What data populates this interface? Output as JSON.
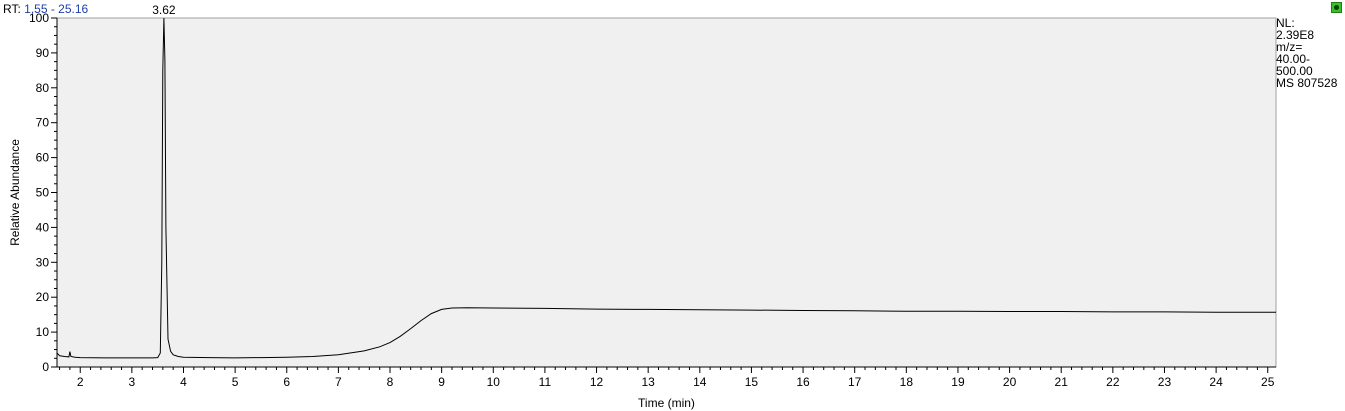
{
  "header": {
    "label": "RT:",
    "range": "1.55 - 25.16"
  },
  "info": [
    "NL:",
    "2.39E8",
    "m/z=",
    "40.00-",
    "500.00",
    "MS 807528"
  ],
  "icons": {
    "corner": "status-icon"
  },
  "colors": {
    "plot_background": "#f0f0f0",
    "trace": "#000000",
    "range_text": "#1f3fa8",
    "status_icon": "#3cbf2a"
  },
  "chart_data": {
    "type": "line",
    "title": "",
    "xlabel": "Time (min)",
    "ylabel": "Relative Abundance",
    "xlim": [
      1.55,
      25.16
    ],
    "ylim": [
      0,
      100
    ],
    "x_ticks": [
      2,
      3,
      4,
      5,
      6,
      7,
      8,
      9,
      10,
      11,
      12,
      13,
      14,
      15,
      16,
      17,
      18,
      19,
      20,
      21,
      22,
      23,
      24,
      25
    ],
    "y_ticks": [
      0,
      10,
      20,
      30,
      40,
      50,
      60,
      70,
      80,
      90,
      100
    ],
    "grid": false,
    "peak_labels": [
      {
        "x": 3.62,
        "y": 100,
        "text": "3.62"
      }
    ],
    "series": [
      {
        "x": [
          1.55,
          1.6,
          1.7,
          1.78,
          1.8,
          1.82,
          1.9,
          2.0,
          2.5,
          3.0,
          3.4,
          3.5,
          3.55,
          3.58,
          3.6,
          3.62,
          3.64,
          3.66,
          3.7,
          3.75,
          3.8,
          3.9,
          4.0,
          4.5,
          5.0,
          5.5,
          6.0,
          6.5,
          7.0,
          7.5,
          7.8,
          8.0,
          8.2,
          8.4,
          8.6,
          8.8,
          9.0,
          9.2,
          9.5,
          10,
          11,
          12,
          13,
          14,
          15,
          16,
          17,
          18,
          19,
          20,
          21,
          22,
          23,
          24,
          25,
          25.16
        ],
        "values": [
          4,
          3.2,
          3.0,
          2.9,
          4.4,
          3.0,
          2.8,
          2.7,
          2.6,
          2.6,
          2.6,
          2.7,
          4,
          30,
          85,
          100,
          88,
          40,
          8,
          4.5,
          3.5,
          3.0,
          2.8,
          2.7,
          2.6,
          2.7,
          2.8,
          3.0,
          3.5,
          4.6,
          5.8,
          7.0,
          8.8,
          11.0,
          13.3,
          15.3,
          16.5,
          16.9,
          17.0,
          16.9,
          16.8,
          16.6,
          16.5,
          16.4,
          16.3,
          16.2,
          16.1,
          16.0,
          16.0,
          15.9,
          15.9,
          15.8,
          15.8,
          15.7,
          15.7,
          15.7
        ]
      }
    ]
  }
}
